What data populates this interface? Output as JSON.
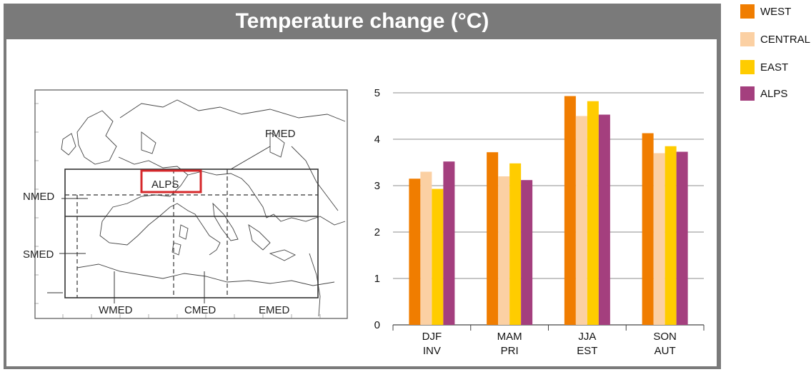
{
  "title": "Temperature change (°C)",
  "map": {
    "region_labels": [
      "FMED",
      "ALPS",
      "NMED",
      "SMED",
      "WMED",
      "CMED",
      "EMED"
    ]
  },
  "legend": [
    {
      "label": "WEST",
      "color": "#f07d00"
    },
    {
      "label": "CENTRAL",
      "color": "#fbd0a3"
    },
    {
      "label": "EAST",
      "color": "#ffcc00"
    },
    {
      "label": "ALPS",
      "color": "#a43f7e"
    }
  ],
  "chart_data": {
    "type": "bar",
    "categories": [
      "DJF\nINV",
      "MAM\nPRI",
      "JJA\nEST",
      "SON\nAUT"
    ],
    "series": [
      {
        "name": "WEST",
        "color": "#f07d00",
        "values": [
          3.15,
          3.72,
          4.93,
          4.13
        ]
      },
      {
        "name": "CENTRAL",
        "color": "#fbd0a3",
        "values": [
          3.3,
          3.2,
          4.5,
          3.7
        ]
      },
      {
        "name": "EAST",
        "color": "#ffcc00",
        "values": [
          2.93,
          3.48,
          4.82,
          3.85
        ]
      },
      {
        "name": "ALPS",
        "color": "#a43f7e",
        "values": [
          3.52,
          3.12,
          4.53,
          3.73
        ]
      }
    ],
    "ylim": [
      0,
      5
    ],
    "yticks": [
      0,
      1,
      2,
      3,
      4,
      5
    ],
    "grid": true,
    "legend_position": "right"
  }
}
